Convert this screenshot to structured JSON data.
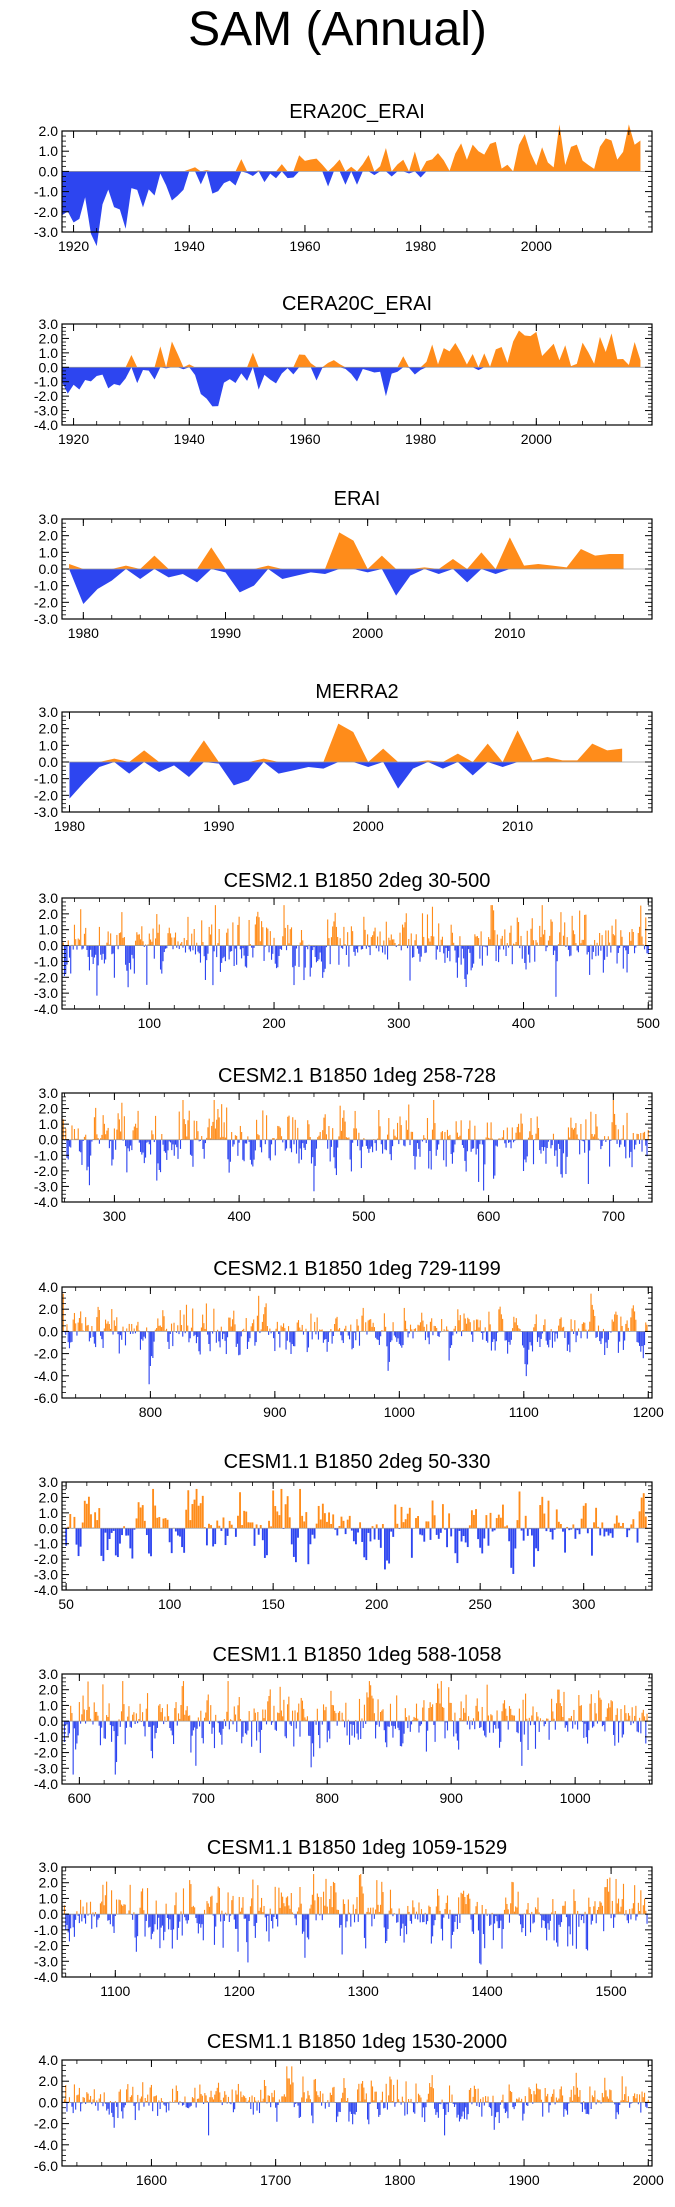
{
  "title": "SAM (Annual)",
  "colors": {
    "positive": "#ff8c1a",
    "negative": "#2d45f0",
    "frame": "#000000",
    "zero_line": "#9a9a9a"
  },
  "chart_data": [
    {
      "type": "area",
      "title": "ERA20C_ERAI",
      "xlim": [
        1918,
        2020
      ],
      "ylim": [
        -3,
        2
      ],
      "xticks": [
        1920,
        1940,
        1960,
        1980,
        2000
      ],
      "xtick_labels": [
        "1920",
        "1940",
        "1960",
        "1980",
        "2000"
      ],
      "yticks": [
        2,
        1,
        0,
        -1,
        -2,
        -3
      ],
      "ytick_labels": [
        "2.0",
        "1.0",
        "0.0",
        "-1.0",
        "-2.0",
        "-3.0"
      ],
      "x_start": 1918,
      "x_end": 2018,
      "anchors": [
        [
          1918,
          -2.7
        ],
        [
          1920,
          -2.5
        ],
        [
          1922,
          -2.0
        ],
        [
          1924,
          -2.8
        ],
        [
          1926,
          -1.5
        ],
        [
          1928,
          -2.2
        ],
        [
          1930,
          -1.0
        ],
        [
          1932,
          -1.3
        ],
        [
          1935,
          -0.5
        ],
        [
          1938,
          -1.2
        ],
        [
          1940,
          -0.3
        ],
        [
          1942,
          -1.0
        ],
        [
          1945,
          -0.6
        ],
        [
          1948,
          -1.0
        ],
        [
          1950,
          0.0
        ],
        [
          1952,
          0.1
        ],
        [
          1955,
          -0.4
        ],
        [
          1958,
          0.2
        ],
        [
          1960,
          0.3
        ],
        [
          1963,
          -0.2
        ],
        [
          1966,
          -0.4
        ],
        [
          1970,
          0.1
        ],
        [
          1973,
          -0.5
        ],
        [
          1976,
          0.1
        ],
        [
          1978,
          -0.2
        ],
        [
          1980,
          0.6
        ],
        [
          1984,
          0.8
        ],
        [
          1988,
          0.5
        ],
        [
          1992,
          0.9
        ],
        [
          1995,
          0.6
        ],
        [
          1998,
          1.5
        ],
        [
          2001,
          0.7
        ],
        [
          2004,
          0.9
        ],
        [
          2008,
          0.8
        ],
        [
          2012,
          1.1
        ],
        [
          2015,
          1.0
        ],
        [
          2018,
          1.3
        ]
      ],
      "noise": 0.55,
      "seed": 1,
      "style": "area"
    },
    {
      "type": "area",
      "title": "CERA20C_ERAI",
      "xlim": [
        1918,
        2020
      ],
      "ylim": [
        -4,
        3
      ],
      "xticks": [
        1920,
        1940,
        1960,
        1980,
        2000
      ],
      "xtick_labels": [
        "1920",
        "1940",
        "1960",
        "1980",
        "2000"
      ],
      "yticks": [
        3,
        2,
        1,
        0,
        -1,
        -2,
        -3,
        -4
      ],
      "ytick_labels": [
        "3.0",
        "2.0",
        "1.0",
        "0.0",
        "-1.0",
        "-2.0",
        "-3.0",
        "-4.0"
      ],
      "x_start": 1918,
      "x_end": 2018,
      "anchors": [
        [
          1918,
          -0.8
        ],
        [
          1922,
          -1.2
        ],
        [
          1925,
          -0.9
        ],
        [
          1928,
          -1.5
        ],
        [
          1931,
          -0.6
        ],
        [
          1934,
          0.6
        ],
        [
          1937,
          -0.5
        ],
        [
          1940,
          -0.3
        ],
        [
          1942,
          -1.5
        ],
        [
          1944,
          -3.2
        ],
        [
          1947,
          -1.0
        ],
        [
          1950,
          -0.5
        ],
        [
          1953,
          -0.8
        ],
        [
          1956,
          -0.3
        ],
        [
          1960,
          0.4
        ],
        [
          1963,
          -0.5
        ],
        [
          1967,
          -0.2
        ],
        [
          1970,
          -0.6
        ],
        [
          1973,
          -0.9
        ],
        [
          1976,
          0.0
        ],
        [
          1979,
          0.4
        ],
        [
          1983,
          0.8
        ],
        [
          1986,
          0.6
        ],
        [
          1990,
          0.5
        ],
        [
          1993,
          1.0
        ],
        [
          1996,
          1.2
        ],
        [
          1998,
          2.4
        ],
        [
          2001,
          1.0
        ],
        [
          2005,
          1.2
        ],
        [
          2010,
          1.0
        ],
        [
          2014,
          1.3
        ],
        [
          2018,
          1.1
        ]
      ],
      "noise": 0.6,
      "seed": 2,
      "style": "area"
    },
    {
      "type": "area",
      "title": "ERAI",
      "xlim": [
        1978.5,
        2020
      ],
      "ylim": [
        -3,
        3
      ],
      "xticks": [
        1980,
        1990,
        2000,
        2010
      ],
      "xtick_labels": [
        "1980",
        "1990",
        "2000",
        "2010"
      ],
      "yticks": [
        3,
        2,
        1,
        0,
        -1,
        -2,
        -3
      ],
      "ytick_labels": [
        "3.0",
        "2.0",
        "1.0",
        "0.0",
        "-1.0",
        "-2.0",
        "-3.0"
      ],
      "x": [
        1979,
        1980,
        1981,
        1982,
        1983,
        1984,
        1985,
        1986,
        1987,
        1988,
        1989,
        1990,
        1991,
        1992,
        1993,
        1994,
        1995,
        1996,
        1997,
        1998,
        1999,
        2000,
        2001,
        2002,
        2003,
        2004,
        2005,
        2006,
        2007,
        2008,
        2009,
        2010,
        2011,
        2012,
        2013,
        2014,
        2015,
        2016,
        2017,
        2018
      ],
      "values": [
        0.3,
        -2.1,
        -1.2,
        -0.7,
        0.2,
        -0.6,
        0.8,
        -0.5,
        -0.3,
        -0.8,
        1.3,
        -0.2,
        -1.4,
        -1.0,
        0.2,
        -0.6,
        -0.4,
        -0.2,
        -0.3,
        2.2,
        1.7,
        -0.2,
        0.8,
        -1.6,
        -0.4,
        0.1,
        -0.3,
        0.6,
        -0.8,
        1.0,
        -0.3,
        1.9,
        0.2,
        0.3,
        0.2,
        0.1,
        1.2,
        0.8,
        0.9,
        0.9
      ],
      "style": "area"
    },
    {
      "type": "area",
      "title": "MERRA2",
      "xlim": [
        1979.5,
        2019
      ],
      "ylim": [
        -3,
        3
      ],
      "xticks": [
        1980,
        1990,
        2000,
        2010
      ],
      "xtick_labels": [
        "1980",
        "1990",
        "2000",
        "2010"
      ],
      "yticks": [
        3,
        2,
        1,
        0,
        -1,
        -2,
        -3
      ],
      "ytick_labels": [
        "3.0",
        "2.0",
        "1.0",
        "0.0",
        "-1.0",
        "-2.0",
        "-3.0"
      ],
      "x": [
        1980,
        1981,
        1982,
        1983,
        1984,
        1985,
        1986,
        1987,
        1988,
        1989,
        1990,
        1991,
        1992,
        1993,
        1994,
        1995,
        1996,
        1997,
        1998,
        1999,
        2000,
        2001,
        2002,
        2003,
        2004,
        2005,
        2006,
        2007,
        2008,
        2009,
        2010,
        2011,
        2012,
        2013,
        2014,
        2015,
        2016,
        2017
      ],
      "values": [
        -2.2,
        -1.2,
        -0.3,
        0.2,
        -0.7,
        0.7,
        -0.6,
        -0.2,
        -0.9,
        1.3,
        -0.1,
        -1.4,
        -1.1,
        0.2,
        -0.7,
        -0.5,
        -0.3,
        -0.4,
        2.3,
        1.8,
        -0.3,
        0.8,
        -1.6,
        -0.4,
        0.1,
        -0.4,
        0.5,
        -0.8,
        1.1,
        -0.3,
        1.9,
        0.1,
        0.3,
        0.1,
        0.1,
        1.1,
        0.7,
        0.8
      ],
      "style": "area"
    },
    {
      "type": "bar",
      "title": "CESM2.1 B1850 2deg 30-500",
      "xlim": [
        30,
        503
      ],
      "ylim": [
        -4,
        3
      ],
      "xticks": [
        100,
        200,
        300,
        400,
        500
      ],
      "xtick_labels": [
        "100",
        "200",
        "300",
        "400",
        "500"
      ],
      "yticks": [
        3,
        2,
        1,
        0,
        -1,
        -2,
        -3,
        -4
      ],
      "ytick_labels": [
        "3.0",
        "2.0",
        "1.0",
        "0.0",
        "-1.0",
        "-2.0",
        "-3.0",
        "-4.0"
      ],
      "x_start": 30,
      "x_end": 500,
      "sd": 0.9,
      "seed": 11,
      "style": "bars"
    },
    {
      "type": "bar",
      "title": "CESM2.1 B1850 1deg 258-728",
      "xlim": [
        258,
        731
      ],
      "ylim": [
        -4,
        3
      ],
      "xticks": [
        300,
        400,
        500,
        600,
        700
      ],
      "xtick_labels": [
        "300",
        "400",
        "500",
        "600",
        "700"
      ],
      "yticks": [
        3,
        2,
        1,
        0,
        -1,
        -2,
        -3,
        -4
      ],
      "ytick_labels": [
        "3.0",
        "2.0",
        "1.0",
        "0.0",
        "-1.0",
        "-2.0",
        "-3.0",
        "-4.0"
      ],
      "x_start": 258,
      "x_end": 728,
      "sd": 0.95,
      "seed": 12,
      "style": "bars"
    },
    {
      "type": "bar",
      "title": "CESM2.1 B1850 1deg 729-1199",
      "xlim": [
        729,
        1203
      ],
      "ylim": [
        -6,
        4
      ],
      "xticks": [
        800,
        900,
        1000,
        1100,
        1200
      ],
      "xtick_labels": [
        "800",
        "900",
        "1000",
        "1100",
        "1200"
      ],
      "yticks": [
        4,
        2,
        0,
        -2,
        -4,
        -6
      ],
      "ytick_labels": [
        "4.0",
        "2.0",
        "0.0",
        "-2.0",
        "-4.0",
        "-6.0"
      ],
      "x_start": 729,
      "x_end": 1199,
      "sd": 0.95,
      "seed": 13,
      "style": "bars"
    },
    {
      "type": "bar",
      "title": "CESM1.1 B1850 2deg 50-330",
      "xlim": [
        48,
        333
      ],
      "ylim": [
        -4,
        3
      ],
      "xticks": [
        50,
        100,
        150,
        200,
        250,
        300
      ],
      "xtick_labels": [
        "50",
        "100",
        "150",
        "200",
        "250",
        "300"
      ],
      "yticks": [
        3,
        2,
        1,
        0,
        -1,
        -2,
        -3,
        -4
      ],
      "ytick_labels": [
        "3.0",
        "2.0",
        "1.0",
        "0.0",
        "-1.0",
        "-2.0",
        "-3.0",
        "-4.0"
      ],
      "x_start": 50,
      "x_end": 330,
      "sd": 1.0,
      "seed": 14,
      "style": "bars"
    },
    {
      "type": "bar",
      "title": "CESM1.1 B1850 1deg 588-1058",
      "xlim": [
        586,
        1062
      ],
      "ylim": [
        -4,
        3
      ],
      "xticks": [
        600,
        700,
        800,
        900,
        1000
      ],
      "xtick_labels": [
        "600",
        "700",
        "800",
        "900",
        "1000"
      ],
      "yticks": [
        3,
        2,
        1,
        0,
        -1,
        -2,
        -3,
        -4
      ],
      "ytick_labels": [
        "3.0",
        "2.0",
        "1.0",
        "0.0",
        "-1.0",
        "-2.0",
        "-3.0",
        "-4.0"
      ],
      "x_start": 588,
      "x_end": 1058,
      "sd": 0.95,
      "seed": 15,
      "style": "bars"
    },
    {
      "type": "bar",
      "title": "CESM1.1 B1850 1deg 1059-1529",
      "xlim": [
        1057,
        1533
      ],
      "ylim": [
        -4,
        3
      ],
      "xticks": [
        1100,
        1200,
        1300,
        1400,
        1500
      ],
      "xtick_labels": [
        "1100",
        "1200",
        "1300",
        "1400",
        "1500"
      ],
      "yticks": [
        3,
        2,
        1,
        0,
        -1,
        -2,
        -3,
        -4
      ],
      "ytick_labels": [
        "3.0",
        "2.0",
        "1.0",
        "0.0",
        "-1.0",
        "-2.0",
        "-3.0",
        "-4.0"
      ],
      "x_start": 1059,
      "x_end": 1529,
      "sd": 0.95,
      "seed": 16,
      "style": "bars"
    },
    {
      "type": "bar",
      "title": "CESM1.1 B1850 1deg 1530-2000",
      "xlim": [
        1528,
        2003
      ],
      "ylim": [
        -6,
        4
      ],
      "xticks": [
        1600,
        1700,
        1800,
        1900,
        2000
      ],
      "xtick_labels": [
        "1600",
        "1700",
        "1800",
        "1900",
        "2000"
      ],
      "yticks": [
        4,
        2,
        0,
        -2,
        -4,
        -6
      ],
      "ytick_labels": [
        "4.0",
        "2.0",
        "0.0",
        "-2.0",
        "-4.0",
        "-6.0"
      ],
      "x_start": 1530,
      "x_end": 2000,
      "sd": 0.95,
      "seed": 17,
      "style": "bars"
    }
  ]
}
